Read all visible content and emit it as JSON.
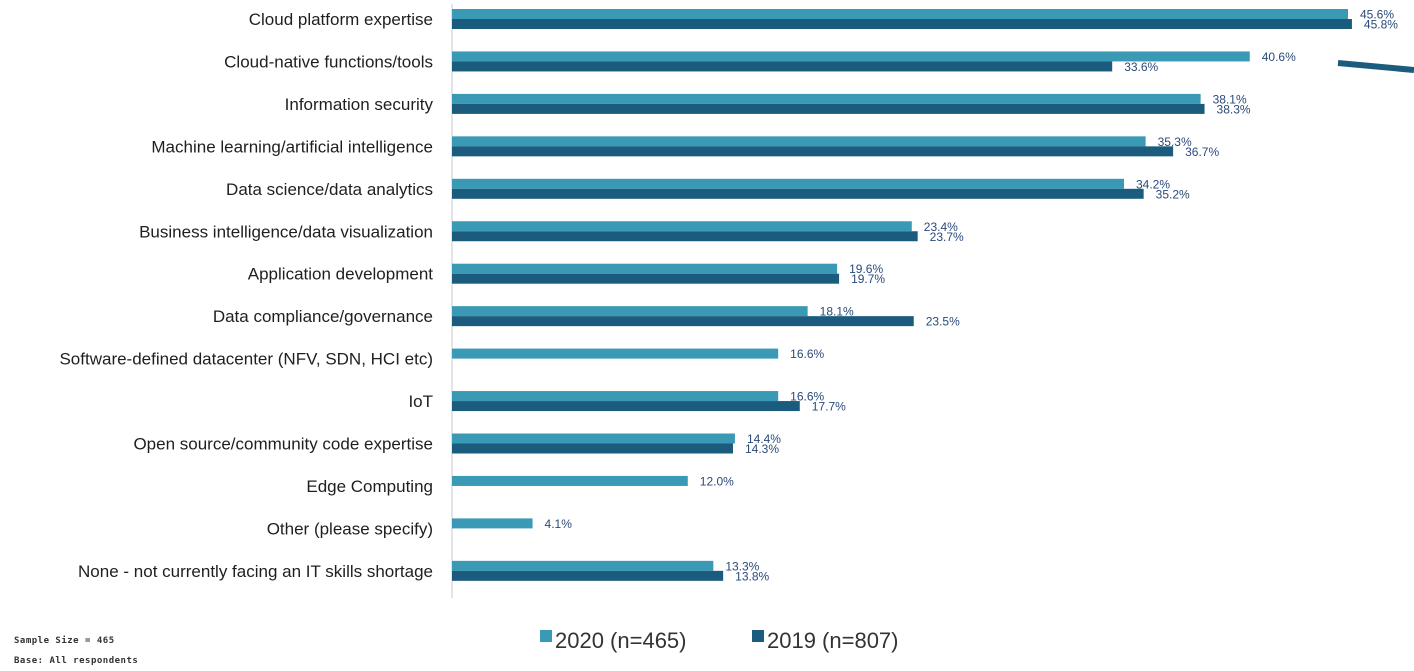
{
  "chart_data": {
    "type": "bar",
    "orientation": "horizontal",
    "categories": [
      "Cloud platform expertise",
      "Cloud-native functions/tools",
      "Information security",
      "Machine learning/artificial intelligence",
      "Data science/data analytics",
      "Business intelligence/data visualization",
      "Application development",
      "Data compliance/governance",
      "Software-defined datacenter (NFV, SDN, HCI etc)",
      "IoT",
      "Open source/community code expertise",
      "Edge Computing",
      "Other (please specify)",
      "None - not currently facing an IT skills shortage"
    ],
    "series": [
      {
        "name": "2020 (n=465)",
        "color": "#3a9ab5",
        "values": [
          45.6,
          40.6,
          38.1,
          35.3,
          34.2,
          23.4,
          19.6,
          18.1,
          16.6,
          16.6,
          14.4,
          12.0,
          4.1,
          13.3
        ],
        "labels": [
          "45.6%",
          "40.6%",
          "38.1%",
          "35.3%",
          "34.2%",
          "23.4%",
          "19.6%",
          "18.1%",
          "16.6%",
          "16.6%",
          "14.4%",
          "12.0%",
          "4.1%",
          "13.3%"
        ]
      },
      {
        "name": "2019 (n=807)",
        "color": "#1b5c7e",
        "values": [
          45.8,
          33.6,
          38.3,
          36.7,
          35.2,
          23.7,
          19.7,
          23.5,
          null,
          17.7,
          14.3,
          null,
          null,
          13.8
        ],
        "labels": [
          "45.8%",
          "33.6%",
          "38.3%",
          "36.7%",
          "35.2%",
          "23.7%",
          "19.7%",
          "23.5%",
          null,
          "17.7%",
          "14.3%",
          null,
          null,
          "13.8%"
        ]
      }
    ],
    "xlim": [
      0,
      46
    ],
    "grid": false,
    "legend_position": "bottom"
  },
  "notes": {
    "sample": "Sample Size = 465",
    "base": "Base: All respondents"
  },
  "accent_stroke_color": "#1b5c7e"
}
